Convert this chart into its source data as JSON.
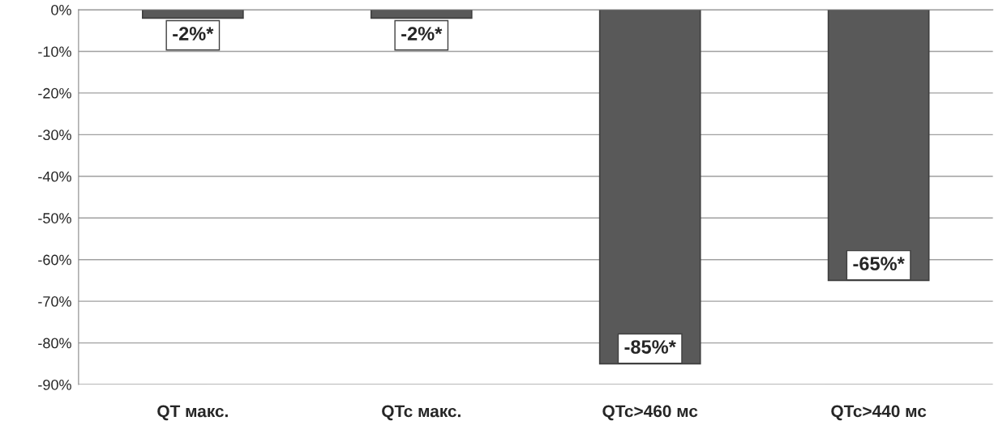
{
  "chart_data": {
    "type": "bar",
    "categories": [
      "QT макс.",
      "QTc макс.",
      "QTc>460 мс",
      "QTc>440 мс"
    ],
    "values": [
      -2,
      -2,
      -85,
      -65
    ],
    "value_labels": [
      "-2%*",
      "-2%*",
      "-85%*",
      "-65%*"
    ],
    "color": "#595959",
    "ylim": [
      -90,
      0
    ],
    "yticks": [
      {
        "value": 0,
        "label": "0%"
      },
      {
        "value": -10,
        "label": "-10%"
      },
      {
        "value": -20,
        "label": "-20%"
      },
      {
        "value": -30,
        "label": "-30%"
      },
      {
        "value": -40,
        "label": "-40%"
      },
      {
        "value": -50,
        "label": "-50%"
      },
      {
        "value": -60,
        "label": "-60%"
      },
      {
        "value": -70,
        "label": "-70%"
      },
      {
        "value": -80,
        "label": "-80%"
      },
      {
        "value": -90,
        "label": "-90%"
      }
    ],
    "grid": "y"
  }
}
